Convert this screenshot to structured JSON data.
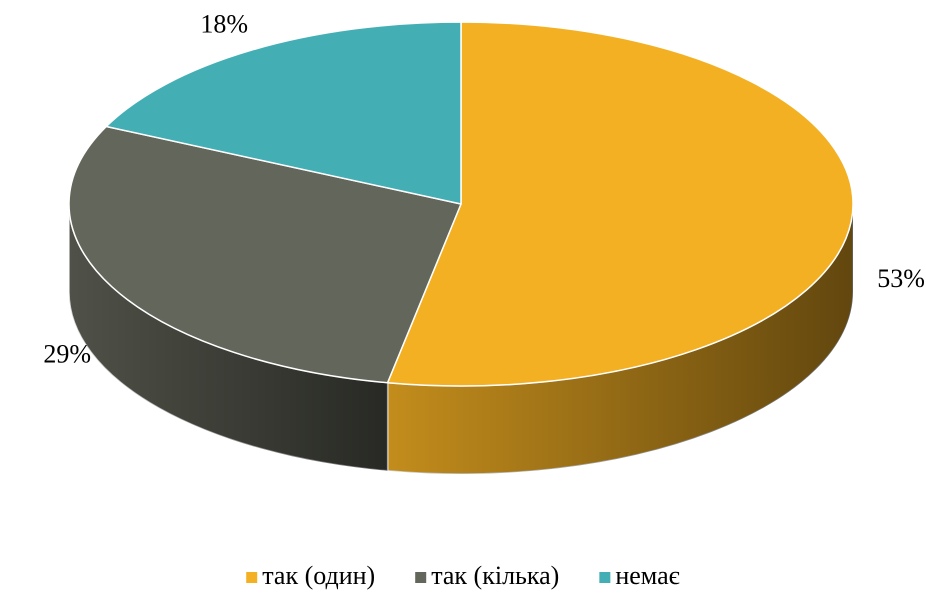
{
  "chart_data": {
    "type": "pie",
    "categories": [
      "так (один)",
      "так (кілька)",
      "немає"
    ],
    "values": [
      53,
      29,
      18
    ],
    "value_labels": [
      "53%",
      "29%",
      "18%"
    ],
    "colors": [
      "#f4b023",
      "#63665a",
      "#43afb5"
    ],
    "legend": "bottom"
  }
}
